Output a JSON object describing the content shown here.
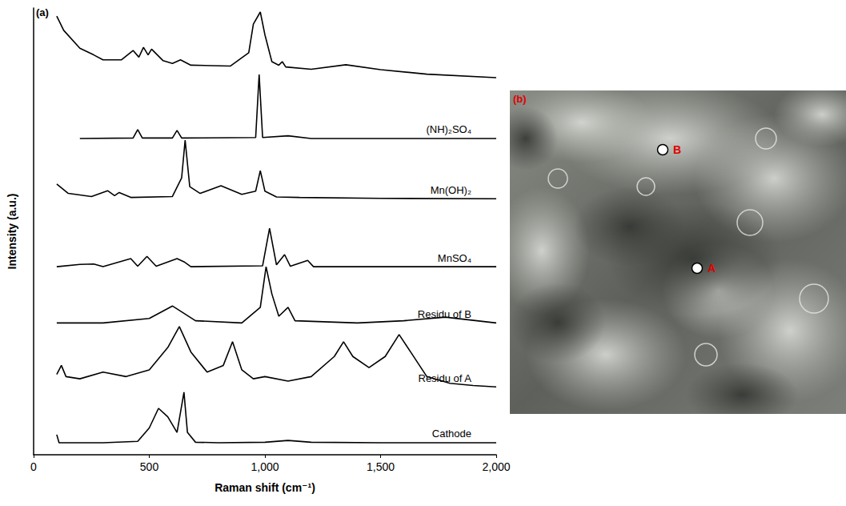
{
  "chart_data": {
    "type": "line",
    "panel_label": "(a)",
    "x_label": "Raman shift (cm⁻¹)",
    "y_label": "Intensity (a.u.)",
    "xlim": [
      0,
      2000
    ],
    "xticks": [
      0,
      500,
      1000,
      1500,
      2000
    ],
    "ylim": [
      0,
      100
    ],
    "tick_labels": "x",
    "grid": false,
    "series": [
      {
        "color": "#000000",
        "line_style": "solid",
        "x": [
          100,
          130,
          200,
          260,
          300,
          380,
          430,
          455,
          475,
          495,
          510,
          560,
          600,
          635,
          680,
          850,
          930,
          950,
          980,
          1000,
          1030,
          1060,
          1075,
          1090,
          1200,
          1350,
          1500,
          1700,
          2000
        ],
        "values": [
          98.2,
          95,
          91,
          89.5,
          88.4,
          88.4,
          90.5,
          89,
          91.2,
          89.5,
          90.8,
          88.2,
          87.6,
          88.4,
          87.2,
          87,
          90,
          96.4,
          99.1,
          94,
          88,
          87.2,
          88,
          86.8,
          86.3,
          87.3,
          86.2,
          85.2,
          84.4
        ]
      },
      {
        "name": "(NH)₂SO₄",
        "color": "#000000",
        "line_style": "solid",
        "x": [
          200,
          430,
          450,
          470,
          600,
          620,
          640,
          960,
          975,
          990,
          1100,
          1200,
          2000
        ],
        "values": [
          70.8,
          70.9,
          72.8,
          70.9,
          70.9,
          72.6,
          70.9,
          71,
          85.1,
          71,
          71.4,
          70.8,
          70.8
        ]
      },
      {
        "name": "Mn(OH)₂",
        "color": "#000000",
        "line_style": "solid",
        "x": [
          100,
          150,
          250,
          320,
          350,
          370,
          420,
          600,
          640,
          655,
          675,
          720,
          810,
          900,
          960,
          980,
          1000,
          1050,
          1150,
          1500,
          2000
        ],
        "values": [
          60.6,
          58.5,
          57.8,
          59.1,
          58,
          58.7,
          57.6,
          57.8,
          62,
          70.4,
          60,
          58.5,
          60.2,
          58.3,
          59,
          63.6,
          59,
          57.7,
          57.6,
          57.4,
          57.3
        ]
      },
      {
        "name": "MnSO₄",
        "color": "#000000",
        "line_style": "solid",
        "x": [
          100,
          200,
          260,
          300,
          420,
          450,
          490,
          530,
          620,
          650,
          680,
          990,
          1020,
          1050,
          1085,
          1110,
          1185,
          1210,
          2000
        ],
        "values": [
          42.1,
          42.6,
          42.7,
          42.1,
          43.9,
          42.2,
          44.4,
          42.2,
          43.9,
          43.2,
          42.1,
          42.3,
          50.7,
          42.5,
          44.8,
          42.2,
          43.5,
          42.1,
          42.1
        ]
      },
      {
        "name": "Residu of B",
        "color": "#000000",
        "line_style": "solid",
        "x": [
          100,
          300,
          500,
          600,
          700,
          900,
          980,
          1005,
          1030,
          1060,
          1100,
          1130,
          1400,
          1600,
          1780,
          2000
        ],
        "values": [
          29.5,
          29.5,
          30.5,
          33.3,
          30,
          29.5,
          33,
          42.1,
          36,
          31,
          33,
          30,
          29.5,
          30,
          30.8,
          29.5
        ]
      },
      {
        "name": "Residu of A",
        "color": "#000000",
        "line_style": "solid",
        "x": [
          100,
          120,
          140,
          200,
          300,
          400,
          500,
          580,
          630,
          680,
          750,
          820,
          860,
          900,
          950,
          1000,
          1100,
          1200,
          1300,
          1340,
          1380,
          1450,
          1520,
          1580,
          1630,
          1700,
          1800,
          1900,
          2000
        ],
        "values": [
          18,
          20,
          17.5,
          17,
          18.5,
          17.5,
          19,
          24,
          28.7,
          23,
          18.5,
          20,
          25.3,
          19,
          17,
          17.5,
          16.5,
          17.5,
          22,
          25.3,
          22,
          19.5,
          22,
          26.9,
          23,
          17.5,
          16,
          15.5,
          15.2
        ]
      },
      {
        "name": "Cathode",
        "color": "#000000",
        "line_style": "solid",
        "x": [
          100,
          110,
          300,
          450,
          500,
          540,
          580,
          620,
          640,
          650,
          665,
          700,
          800,
          1000,
          1100,
          1200,
          1500,
          2000
        ],
        "values": [
          4.5,
          2.7,
          2.7,
          3,
          6,
          10.4,
          8.5,
          5,
          11,
          14,
          5,
          2.8,
          2.7,
          2.8,
          3.2,
          2.8,
          2.7,
          2.7
        ]
      }
    ]
  },
  "image_panel": {
    "panel_label": "(b)",
    "points": [
      {
        "label": "B"
      },
      {
        "label": "A"
      }
    ]
  }
}
